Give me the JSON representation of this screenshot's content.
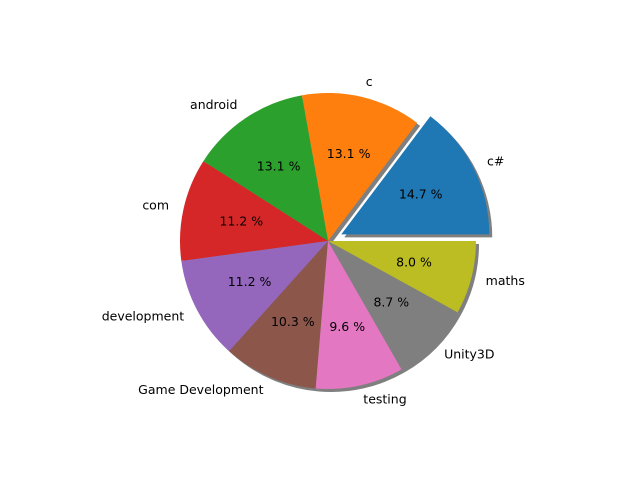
{
  "chart_data": {
    "type": "pie",
    "categories": [
      "c#",
      "c",
      "android",
      "com",
      "development",
      "Game Development",
      "testing",
      "Unity3D",
      "maths"
    ],
    "values": [
      14.7,
      13.1,
      13.1,
      11.2,
      11.2,
      10.3,
      9.6,
      8.7,
      8.0
    ],
    "value_labels": [
      "14.7 %",
      "13.1 %",
      "13.1 %",
      "11.2 %",
      "11.2 %",
      "10.3 %",
      "9.6 %",
      "8.7 %",
      "8.0 %"
    ],
    "colors": [
      "#1f77b4",
      "#ff7f0e",
      "#2ca02c",
      "#d62728",
      "#9467bd",
      "#8c564b",
      "#e377c2",
      "#7f7f7f",
      "#bcbd22"
    ],
    "exploded": [
      "c#"
    ],
    "shadow": true,
    "start_angle": 0,
    "direction": "counterclockwise"
  }
}
